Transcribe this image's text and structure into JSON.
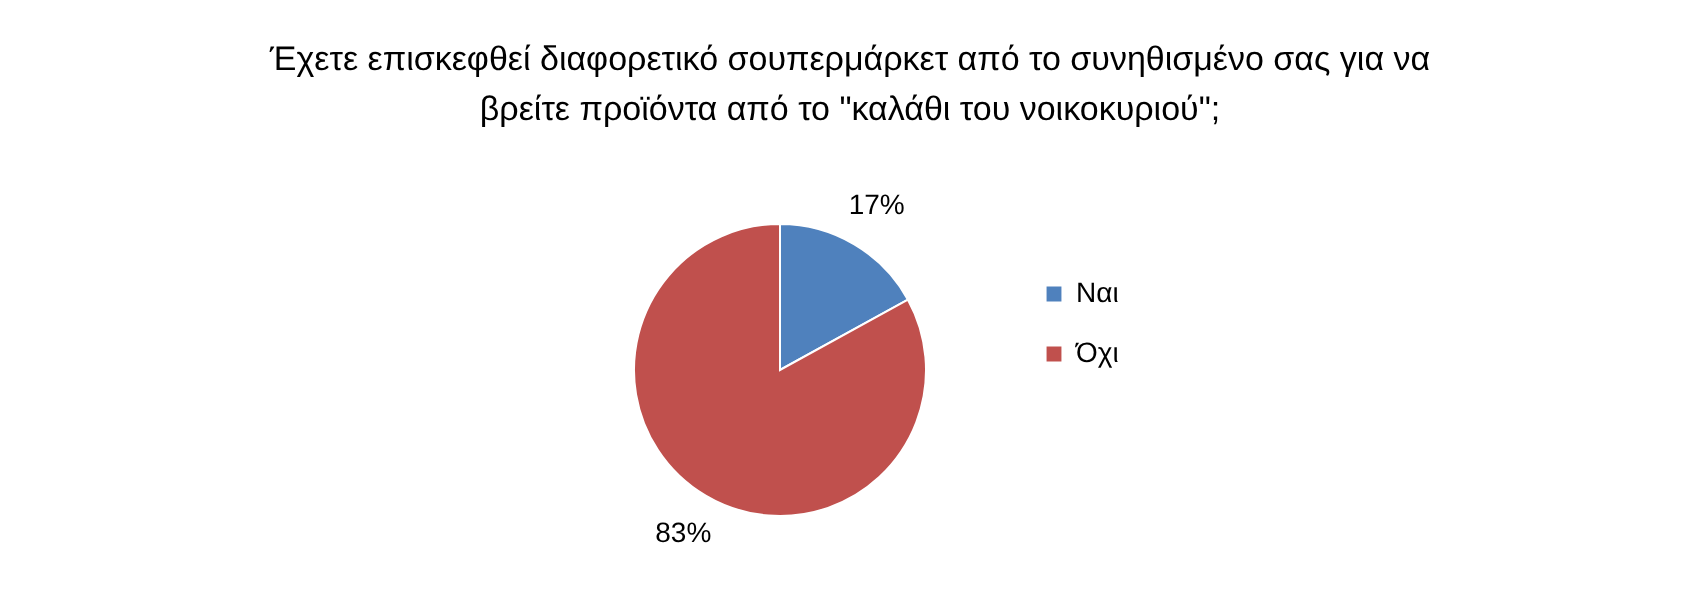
{
  "chart_data": {
    "type": "pie",
    "title": "Έχετε επισκεφθεί διαφορετικό σουπερμάρκετ από το συνηθισμένο σας για να\nβρείτε προϊόντα από το \"καλάθι του νοικοκυριού\";",
    "categories": [
      "Ναι",
      "Όχι"
    ],
    "values": [
      17,
      83
    ],
    "colors": [
      "#4f81bd",
      "#c0504d"
    ],
    "value_labels": [
      "17%",
      "83%"
    ],
    "legend": "right"
  }
}
